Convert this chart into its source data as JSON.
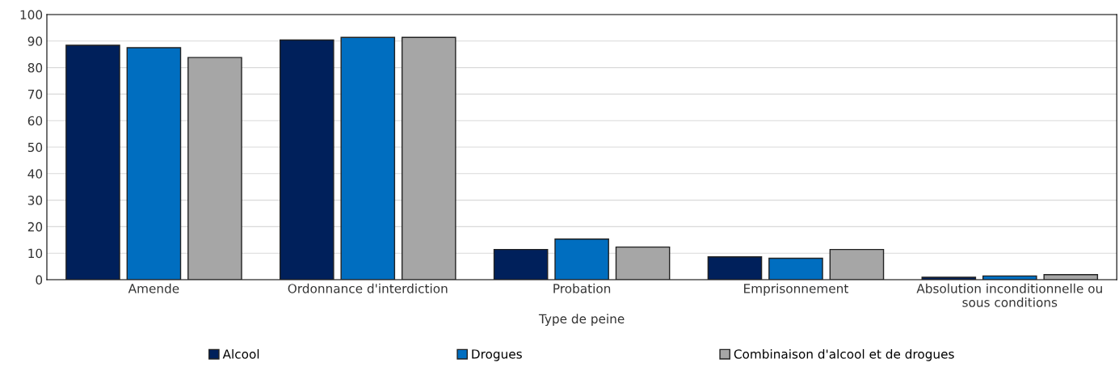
{
  "chart_data": {
    "type": "bar",
    "xlabel": "Type de peine",
    "categories": [
      "Amende",
      "Ordonnance d'interdiction",
      "Probation",
      "Emprisonnement",
      "Absolution inconditionnelle ou\nsous conditions"
    ],
    "series": [
      {
        "name": "Alcool",
        "color": "#00205b",
        "values": [
          88.4,
          90.4,
          11.4,
          8.6,
          0.9
        ]
      },
      {
        "name": "Drogues",
        "color": "#006ec0",
        "values": [
          87.5,
          91.4,
          15.3,
          8.1,
          1.4
        ]
      },
      {
        "name": "Combinaison d'alcool et de drogues",
        "color": "#a6a6a6",
        "values": [
          83.8,
          91.4,
          12.3,
          11.4,
          1.9
        ]
      }
    ],
    "ylim": [
      0,
      100
    ],
    "yticks": [
      0,
      10,
      20,
      30,
      40,
      50,
      60,
      70,
      80,
      90,
      100
    ],
    "grid": "y",
    "legend": "bottom"
  }
}
